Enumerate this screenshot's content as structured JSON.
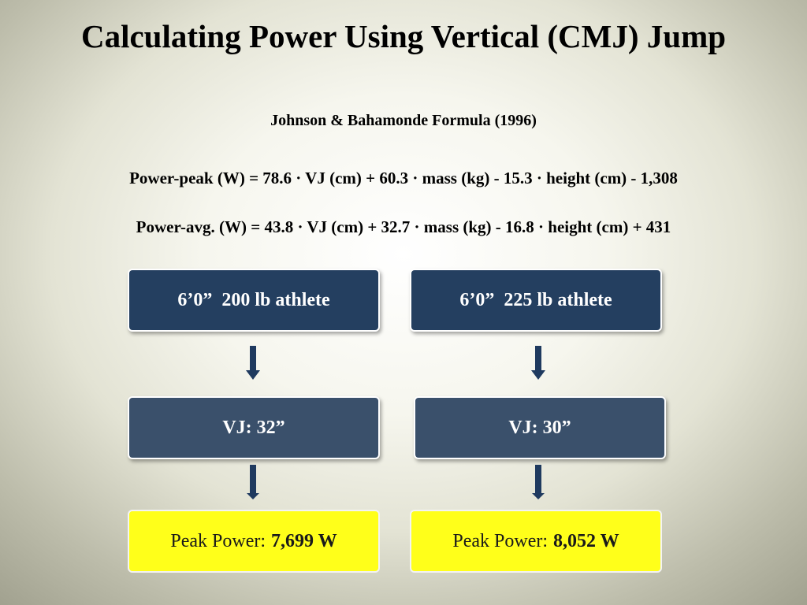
{
  "slide": {
    "title": "Calculating Power Using Vertical (CMJ) Jump",
    "subtitle": "Johnson & Bahamonde Formula (1996)",
    "formula_peak": "Power-peak (W) = 78.6 · VJ (cm) + 60.3 · mass (kg) - 15.3 · height (cm) - 1,308",
    "formula_avg": "Power-avg. (W) = 43.8 · VJ (cm) + 32.7 · mass (kg) - 16.8 · height (cm) + 431"
  },
  "left": {
    "athlete": "6’0”  200 lb athlete",
    "vj": "VJ: 32”",
    "result_label": "Peak Power:",
    "result_value": "7,699 W"
  },
  "right": {
    "athlete": "6’0”  225 lb athlete",
    "vj": "VJ: 30”",
    "result_label": "Peak Power:",
    "result_value": "8,052 W"
  },
  "colors": {
    "athlete_box": "#243f60",
    "vj_box": "#3a506b",
    "result_box": "#ffff1a",
    "arrow": "#1f3a5f"
  }
}
